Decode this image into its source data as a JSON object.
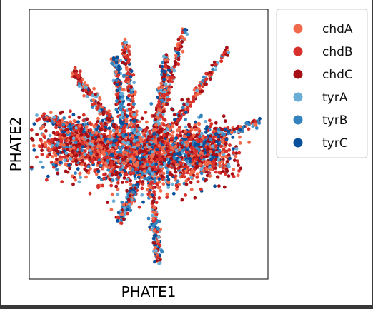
{
  "chart_data": {
    "type": "scatter",
    "title": "",
    "xlabel": "PHATE1",
    "ylabel": "PHATE2",
    "xlim": [
      0,
      1
    ],
    "ylim": [
      0,
      1
    ],
    "grid": false,
    "ticks_shown": false,
    "legend_position": "outside-right",
    "series": [
      {
        "name": "chdA",
        "color": "#f0694a"
      },
      {
        "name": "chdB",
        "color": "#d7302a"
      },
      {
        "name": "chdC",
        "color": "#a50f15"
      },
      {
        "name": "tyrA",
        "color": "#6aaed6"
      },
      {
        "name": "tyrB",
        "color": "#3283be"
      },
      {
        "name": "tyrC",
        "color": "#08509b"
      }
    ],
    "point_density": {
      "description": "single dense cloud with several radiating branches",
      "branches": [
        {
          "from": [
            0.5,
            0.44
          ],
          "to": [
            0.54,
            0.06
          ]
        },
        {
          "from": [
            0.5,
            0.44
          ],
          "to": [
            0.65,
            0.93
          ]
        },
        {
          "from": [
            0.5,
            0.44
          ],
          "to": [
            0.83,
            0.85
          ]
        },
        {
          "from": [
            0.55,
            0.47
          ],
          "to": [
            0.96,
            0.58
          ]
        },
        {
          "from": [
            0.4,
            0.52
          ],
          "to": [
            0.18,
            0.77
          ]
        },
        {
          "from": [
            0.38,
            0.5
          ],
          "to": [
            0.06,
            0.6
          ]
        },
        {
          "from": [
            0.4,
            0.54
          ],
          "to": [
            0.36,
            0.82
          ]
        },
        {
          "from": [
            0.45,
            0.5
          ],
          "to": [
            0.4,
            0.88
          ]
        },
        {
          "from": [
            0.52,
            0.52
          ],
          "to": [
            0.58,
            0.83
          ]
        },
        {
          "from": [
            0.45,
            0.35
          ],
          "to": [
            0.38,
            0.22
          ]
        }
      ]
    }
  }
}
